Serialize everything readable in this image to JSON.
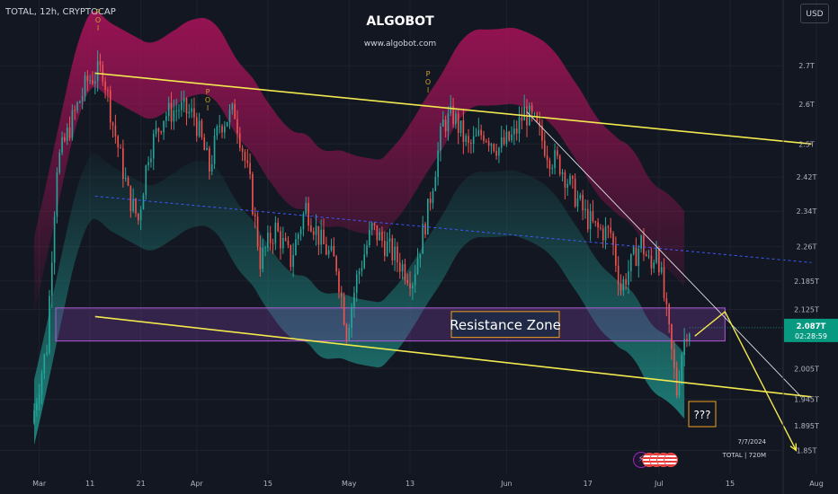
{
  "header": {
    "symbol_line": "TOTAL, 12h, CRYPTOCAP",
    "brand": "ALGOBOT",
    "website": "www.algobot.com",
    "currency_button": "USD"
  },
  "footer": {
    "date": "7/7/2024",
    "symbol_volume": "TOTAL | 720M"
  },
  "poi_label": "P O I",
  "events": {
    "icon": "lightning-icon"
  },
  "colors": {
    "background": "#131722",
    "bull": "#26a69a",
    "bear": "#ef5350",
    "trendline": "#f2e94e",
    "midline": "#3d5afe",
    "upper_band": "#b0125c",
    "lower_band": "#1f8f86",
    "zone_fill": "#7b3fa0",
    "zone_border": "#b15bd9",
    "label_border": "#f0a020",
    "arrow": "#f2e94e"
  },
  "chart_data": {
    "type": "candlestick",
    "symbol": "TOTAL",
    "timeframe": "12h",
    "x_axis": {
      "ticks": [
        "Mar",
        "11",
        "21",
        "Apr",
        "15",
        "May",
        "13",
        "Jun",
        "17",
        "Jul",
        "15",
        "Aug"
      ],
      "range": [
        "2024-02-29",
        "2024-08-01"
      ]
    },
    "y_axis": {
      "ticks": [
        "2.7T",
        "2.6T",
        "2.5T",
        "2.42T",
        "2.34T",
        "2.26T",
        "2.185T",
        "2.125T",
        "2.005T",
        "1.945T",
        "1.895T",
        "1.85T"
      ],
      "scale": "log",
      "unit": "T USD",
      "range": [
        1.82,
        2.78
      ]
    },
    "last_price": {
      "label": "2.087T",
      "countdown": "02:28:59"
    },
    "price_path": [
      [
        "2024-02-29",
        1.9
      ],
      [
        "2024-03-03",
        2.05
      ],
      [
        "2024-03-05",
        2.45
      ],
      [
        "2024-03-08",
        2.56
      ],
      [
        "2024-03-11",
        2.66
      ],
      [
        "2024-03-14",
        2.69
      ],
      [
        "2024-03-16",
        2.55
      ],
      [
        "2024-03-19",
        2.38
      ],
      [
        "2024-03-21",
        2.32
      ],
      [
        "2024-03-23",
        2.48
      ],
      [
        "2024-03-26",
        2.57
      ],
      [
        "2024-03-29",
        2.59
      ],
      [
        "2024-04-01",
        2.57
      ],
      [
        "2024-04-04",
        2.44
      ],
      [
        "2024-04-06",
        2.55
      ],
      [
        "2024-04-09",
        2.58
      ],
      [
        "2024-04-12",
        2.4
      ],
      [
        "2024-04-14",
        2.23
      ],
      [
        "2024-04-17",
        2.3
      ],
      [
        "2024-04-20",
        2.23
      ],
      [
        "2024-04-23",
        2.35
      ],
      [
        "2024-04-26",
        2.27
      ],
      [
        "2024-04-29",
        2.22
      ],
      [
        "2024-05-01",
        2.08
      ],
      [
        "2024-05-03",
        2.19
      ],
      [
        "2024-05-06",
        2.3
      ],
      [
        "2024-05-09",
        2.26
      ],
      [
        "2024-05-11",
        2.23
      ],
      [
        "2024-05-14",
        2.19
      ],
      [
        "2024-05-17",
        2.34
      ],
      [
        "2024-05-20",
        2.55
      ],
      [
        "2024-05-22",
        2.57
      ],
      [
        "2024-05-25",
        2.49
      ],
      [
        "2024-05-28",
        2.53
      ],
      [
        "2024-05-31",
        2.49
      ],
      [
        "2024-06-03",
        2.52
      ],
      [
        "2024-06-05",
        2.58
      ],
      [
        "2024-06-07",
        2.55
      ],
      [
        "2024-06-10",
        2.47
      ],
      [
        "2024-06-12",
        2.45
      ],
      [
        "2024-06-14",
        2.4
      ],
      [
        "2024-06-17",
        2.33
      ],
      [
        "2024-06-19",
        2.3
      ],
      [
        "2024-06-22",
        2.29
      ],
      [
        "2024-06-24",
        2.17
      ],
      [
        "2024-06-26",
        2.22
      ],
      [
        "2024-06-28",
        2.27
      ],
      [
        "2024-06-30",
        2.21
      ],
      [
        "2024-07-01",
        2.27
      ],
      [
        "2024-07-03",
        2.11
      ],
      [
        "2024-07-05",
        1.96
      ],
      [
        "2024-07-06",
        2.04
      ],
      [
        "2024-07-07",
        2.087
      ]
    ],
    "annotations": [
      {
        "type": "rectangle",
        "label": "Resistance Zone",
        "from": "2024-02-29",
        "to": "2024-07-14",
        "price_low": 2.06,
        "price_high": 2.128
      },
      {
        "type": "trendline",
        "from": [
          "2024-03-12",
          2.68
        ],
        "to": [
          "2024-07-31",
          2.5
        ]
      },
      {
        "type": "trendline",
        "from": [
          "2024-03-12",
          2.11
        ],
        "to": [
          "2024-07-31",
          1.95
        ]
      },
      {
        "type": "trendline",
        "from": [
          "2024-06-05",
          2.58
        ],
        "to": [
          "2024-07-29",
          1.95
        ]
      },
      {
        "type": "dashed-line",
        "from": [
          "2024-03-12",
          2.375
        ],
        "to": [
          "2024-07-31",
          2.225
        ]
      },
      {
        "type": "projection",
        "points": [
          [
            "2024-07-07",
            2.07
          ],
          [
            "2024-07-14",
            2.12
          ],
          [
            "2024-07-28",
            1.85
          ]
        ]
      },
      {
        "type": "label",
        "text": "???",
        "at": [
          "2024-07-20",
          1.91
        ]
      },
      {
        "type": "label",
        "text": "P O I",
        "at": [
          "2024-03-12",
          2.76
        ]
      },
      {
        "type": "label",
        "text": "P O I",
        "at": [
          "2024-04-06",
          2.6
        ]
      },
      {
        "type": "label",
        "text": "P O I",
        "at": [
          "2024-05-24",
          2.65
        ]
      }
    ]
  }
}
